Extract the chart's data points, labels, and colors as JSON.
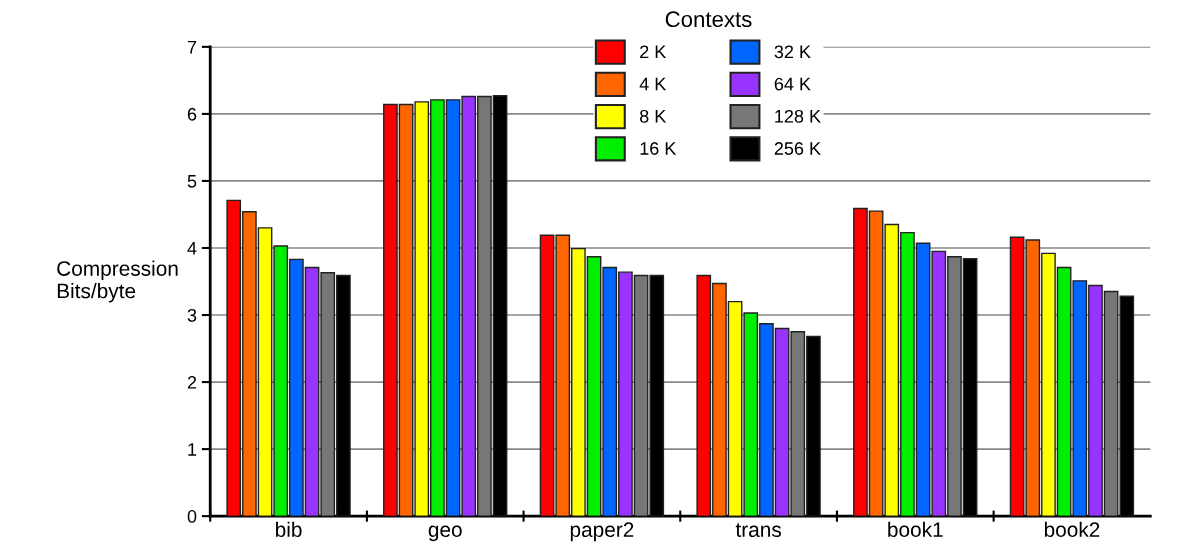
{
  "chart_data": {
    "type": "bar",
    "ylabel": "Compression\nBits/byte",
    "legend_title": "Contexts",
    "legend": "top",
    "categories": [
      "bib",
      "geo",
      "paper2",
      "trans",
      "book1",
      "book2"
    ],
    "series": [
      {
        "name": "2 K",
        "color": "#ff0000",
        "values": [
          4.71,
          6.14,
          4.19,
          3.59,
          4.59,
          4.16
        ]
      },
      {
        "name": "4 K",
        "color": "#ff6600",
        "values": [
          4.54,
          6.14,
          4.19,
          3.47,
          4.55,
          4.12
        ]
      },
      {
        "name": "8 K",
        "color": "#ffff00",
        "values": [
          4.3,
          6.18,
          3.99,
          3.2,
          4.35,
          3.92
        ]
      },
      {
        "name": "16 K",
        "color": "#00ee00",
        "values": [
          4.03,
          6.21,
          3.87,
          3.03,
          4.23,
          3.71
        ]
      },
      {
        "name": "32 K",
        "color": "#0066ff",
        "values": [
          3.83,
          6.21,
          3.71,
          2.87,
          4.07,
          3.51
        ]
      },
      {
        "name": "64 K",
        "color": "#9933ff",
        "values": [
          3.71,
          6.26,
          3.64,
          2.8,
          3.95,
          3.44
        ]
      },
      {
        "name": "128 K",
        "color": "#777777",
        "values": [
          3.63,
          6.26,
          3.59,
          2.75,
          3.87,
          3.35
        ]
      },
      {
        "name": "256 K",
        "color": "#000000",
        "values": [
          3.59,
          6.27,
          3.59,
          2.68,
          3.84,
          3.28
        ]
      }
    ],
    "ylim": [
      0,
      7
    ],
    "yticks": [
      0,
      1,
      2,
      3,
      4,
      5,
      6,
      7
    ],
    "grid": "y"
  }
}
